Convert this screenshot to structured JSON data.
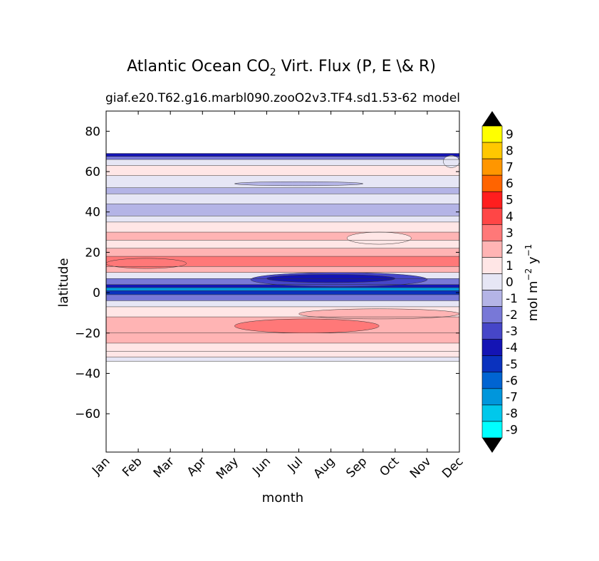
{
  "chart_data": {
    "type": "heatmap",
    "title_main": "Atlantic Ocean CO",
    "title_sub": "2",
    "title_rest": " Virt. Flux (P, E \\& R)",
    "subtitle_left": "giaf.e20.T62.g16.marbl090.zooO2v3.TF4.sd1.53-62",
    "subtitle_right": "model",
    "xlabel": "month",
    "ylabel": "latitude",
    "x_categories": [
      "Jan",
      "Feb",
      "Mar",
      "Apr",
      "May",
      "Jun",
      "Jul",
      "Aug",
      "Sep",
      "Oct",
      "Nov",
      "Dec"
    ],
    "y_ticks": [
      80,
      60,
      40,
      20,
      0,
      -20,
      -40,
      -60
    ],
    "y_tick_labels": [
      "80",
      "60",
      "40",
      "20",
      "0",
      "−20",
      "−40",
      "−60"
    ],
    "ylim": [
      -79,
      90
    ],
    "data_lat_range": [
      -34,
      69
    ],
    "colorbar_levels": [
      9,
      8,
      7,
      6,
      5,
      4,
      3,
      2,
      1,
      0,
      -1,
      -2,
      -3,
      -4,
      -5,
      -6,
      -7,
      -8,
      -9
    ],
    "colorbar_level_labels": [
      "9",
      "8",
      "7",
      "6",
      "5",
      "4",
      "3",
      "2",
      "1",
      "0",
      "-1",
      "-2",
      "-3",
      "-4",
      "-5",
      "-6",
      "-7",
      "-8",
      "-9"
    ],
    "colorbar_colors": [
      "#ffff00",
      "#ffc800",
      "#ff9600",
      "#ff6400",
      "#ff1e1e",
      "#ff4646",
      "#ff7878",
      "#ffb4b4",
      "#ffe6e6",
      "#e6e6f5",
      "#b4b4e6",
      "#7878d7",
      "#4646c8",
      "#1414b4",
      "#0a32be",
      "#0064d2",
      "#0096dc",
      "#00c8eb",
      "#00ffff"
    ],
    "colorbar_label_main": "mol m",
    "colorbar_label_exp1": "−2",
    "colorbar_label_mid": "  y",
    "colorbar_label_exp2": "−1",
    "bands": [
      {
        "lat": [
          67.5,
          69
        ],
        "value": -4
      },
      {
        "lat": [
          66,
          67.5
        ],
        "value": -2
      },
      {
        "lat": [
          63,
          66
        ],
        "value": 0
      },
      {
        "lat": [
          58,
          63
        ],
        "value": 1
      },
      {
        "lat": [
          52,
          58
        ],
        "value": 0
      },
      {
        "lat": [
          49,
          52
        ],
        "value": -1
      },
      {
        "lat": [
          44,
          49
        ],
        "value": 0
      },
      {
        "lat": [
          38,
          44
        ],
        "value": -1
      },
      {
        "lat": [
          35,
          38
        ],
        "value": 0
      },
      {
        "lat": [
          30,
          35
        ],
        "value": 1
      },
      {
        "lat": [
          26,
          30
        ],
        "value": 2
      },
      {
        "lat": [
          22,
          26
        ],
        "value": 1
      },
      {
        "lat": [
          18,
          22
        ],
        "value": 2
      },
      {
        "lat": [
          13,
          18
        ],
        "value": 3
      },
      {
        "lat": [
          10,
          13
        ],
        "value": 2
      },
      {
        "lat": [
          7,
          10
        ],
        "value": 0
      },
      {
        "lat": [
          4,
          7
        ],
        "value": -2
      },
      {
        "lat": [
          2.5,
          4
        ],
        "value": -4
      },
      {
        "lat": [
          1,
          2.5
        ],
        "value": -7
      },
      {
        "lat": [
          -1,
          1
        ],
        "value": -5
      },
      {
        "lat": [
          -4,
          -1
        ],
        "value": -2
      },
      {
        "lat": [
          -7,
          -4
        ],
        "value": 0
      },
      {
        "lat": [
          -12,
          -7
        ],
        "value": 1
      },
      {
        "lat": [
          -20,
          -12
        ],
        "value": 2
      },
      {
        "lat": [
          -25,
          -20
        ],
        "value": 2
      },
      {
        "lat": [
          -29,
          -25
        ],
        "value": 1
      },
      {
        "lat": [
          -32,
          -29
        ],
        "value": 1
      },
      {
        "lat": [
          -34,
          -32
        ],
        "value": 0
      }
    ],
    "blobs": [
      {
        "lat": [
          12,
          17
        ],
        "months": [
          0,
          2.5
        ],
        "value": 3
      },
      {
        "lat": [
          3,
          10
        ],
        "months": [
          4.5,
          10
        ],
        "value": -3
      },
      {
        "lat": [
          5,
          9
        ],
        "months": [
          5,
          9
        ],
        "value": -4
      },
      {
        "lat": [
          -20,
          -13
        ],
        "months": [
          4,
          8.5
        ],
        "value": 3
      },
      {
        "lat": [
          62,
          68
        ],
        "months": [
          10.5,
          11
        ],
        "value": 0
      },
      {
        "lat": [
          24,
          30
        ],
        "months": [
          7.5,
          9.5
        ],
        "value": 1
      },
      {
        "lat": [
          53,
          55
        ],
        "months": [
          4,
          8
        ],
        "value": -1
      },
      {
        "lat": [
          -13,
          -8
        ],
        "months": [
          6,
          11
        ],
        "value": 2
      }
    ]
  }
}
